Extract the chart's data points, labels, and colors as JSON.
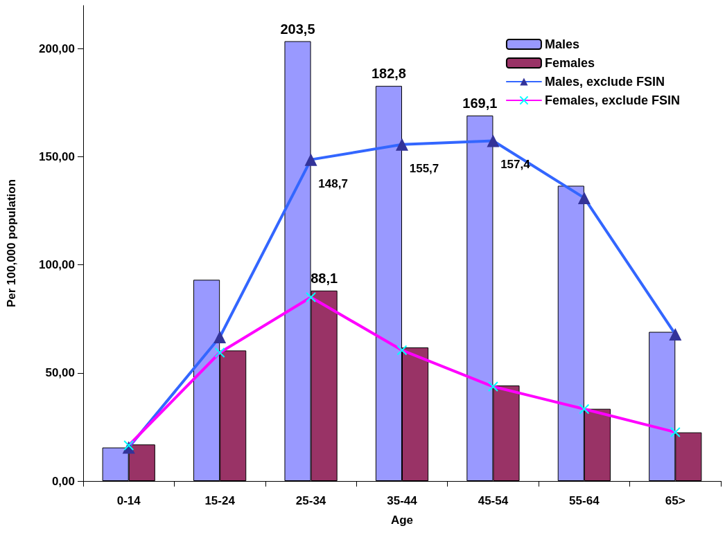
{
  "chart_data": {
    "type": "bar",
    "xlabel": "Age",
    "ylabel": "Per 100,000 population",
    "categories": [
      "0-14",
      "15-24",
      "25-34",
      "35-44",
      "45-54",
      "55-64",
      "65>"
    ],
    "series": [
      {
        "name": "Males",
        "color": "#9999ff",
        "values": [
          15.5,
          93.1,
          203.5,
          182.8,
          169.1,
          136.6,
          69.0
        ],
        "value_labels": [
          null,
          null,
          "203,5",
          "182,8",
          "169,1",
          null,
          null
        ]
      },
      {
        "name": "Females",
        "color": "#993366",
        "values": [
          16.9,
          60.4,
          88.1,
          61.8,
          44.2,
          33.4,
          22.5
        ],
        "value_labels": [
          null,
          null,
          "88,1",
          null,
          null,
          null,
          null
        ]
      },
      {
        "name": "Males, exclude FSIN",
        "type": "line",
        "color": "#3366ff",
        "marker": "triangle",
        "values": [
          15.5,
          66.6,
          148.7,
          155.7,
          157.4,
          131.0,
          67.9
        ],
        "value_labels": [
          null,
          null,
          "148,7",
          "155,7",
          "157,4",
          null,
          null
        ]
      },
      {
        "name": "Females, exclude FSIN",
        "type": "line",
        "color": "#ff00ff",
        "marker": "cross",
        "values": [
          16.5,
          59.4,
          85.0,
          60.5,
          43.7,
          33.3,
          22.6
        ]
      }
    ],
    "ylim": [
      0,
      220
    ],
    "yticks": [
      {
        "value": 0,
        "label": "0,00"
      },
      {
        "value": 50,
        "label": "50,00"
      },
      {
        "value": 100,
        "label": "100,00"
      },
      {
        "value": 150,
        "label": "150,00"
      },
      {
        "value": 200,
        "label": "200,00"
      }
    ],
    "grid": false,
    "legend": "top right"
  }
}
